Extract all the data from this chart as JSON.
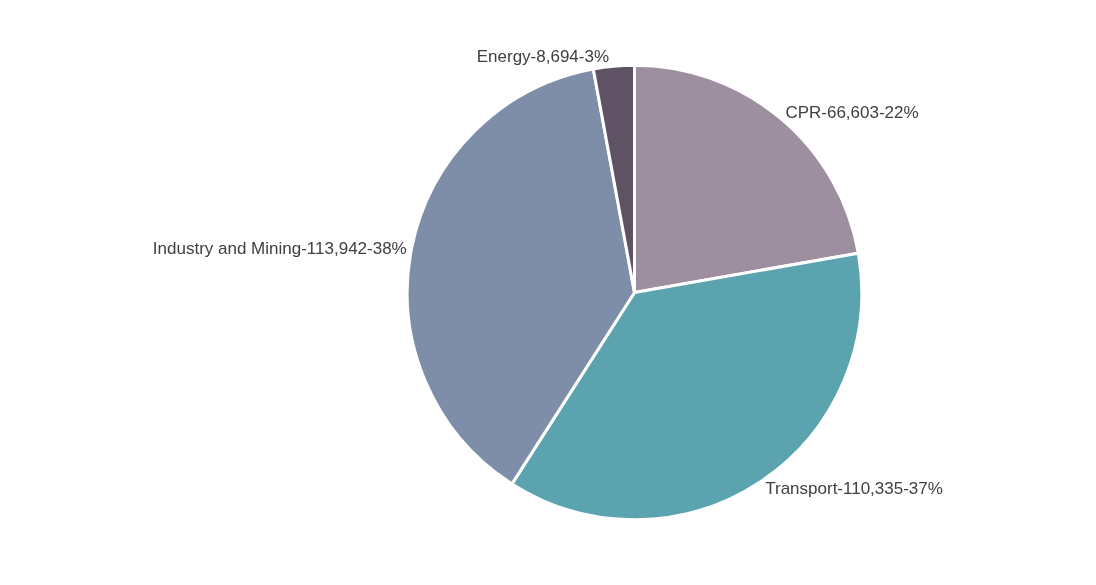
{
  "chart_data": {
    "type": "pie",
    "categories": [
      "CPR",
      "Transport",
      "Industry and Mining",
      "Energy"
    ],
    "values": [
      66603,
      110335,
      113942,
      8694
    ],
    "value_labels": [
      "66,603-22%",
      "110,335-37%",
      "113,942-38%",
      "8,694-3%"
    ],
    "colors": [
      "#9e8fa0",
      "#5ba3ae",
      "#7f8ea8",
      "#5e5264"
    ],
    "legend": false
  }
}
